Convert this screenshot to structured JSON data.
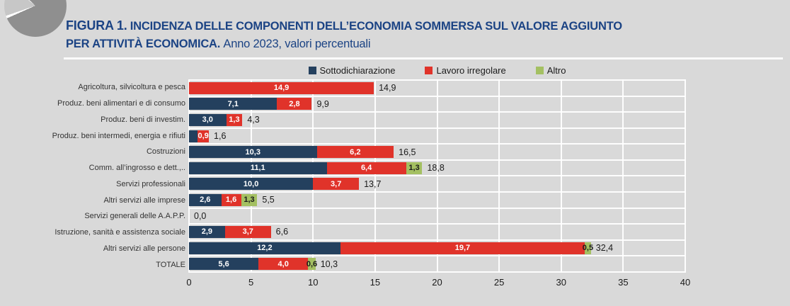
{
  "page": {
    "background": "#d9d9d9"
  },
  "figure": {
    "label": "FIGURA 1.",
    "title_line1": "INCIDENZA DELLE COMPONENTI DELL’ECONOMIA SOMMERSA SUL VALORE AGGIUNTO",
    "title_line2": "PER ATTIVITÀ ECONOMICA.",
    "subtitle": "Anno 2023, valori percentuali",
    "title_color": "#1b4384"
  },
  "legend": [
    {
      "label": "Sottodichiarazione",
      "color": "#24405e"
    },
    {
      "label": "Lavoro irregolare",
      "color": "#e0332a"
    },
    {
      "label": "Altro",
      "color": "#a4c062"
    }
  ],
  "chart_data": {
    "type": "bar",
    "orientation": "horizontal",
    "stacked": true,
    "title": "Incidenza delle componenti dell’economia sommersa sul valore aggiunto per attività economica",
    "xlabel": "",
    "ylabel": "",
    "xlim": [
      0,
      40
    ],
    "x_ticks": [
      0,
      5,
      10,
      15,
      20,
      25,
      30,
      35,
      40
    ],
    "grid": true,
    "legend_position": "top",
    "categories": [
      "Agricoltura, silvicoltura e pesca",
      "Produz. beni alimentari e di consumo",
      "Produz. beni di investim.",
      "Produz. beni intermedi, energia e rifiuti",
      "Costruzioni",
      "Comm. all’ingrosso e dett.,..",
      "Servizi professionali",
      "Altri servizi alle imprese",
      "Servizi generali delle A.A.P.P.",
      "Istruzione, sanità e assistenza sociale",
      "Altri servizi alle persone",
      "TOTALE"
    ],
    "series": [
      {
        "name": "Sottodichiarazione",
        "color": "#24405e",
        "label_color": "#ffffff",
        "values": [
          0,
          7.1,
          3.0,
          0.7,
          10.3,
          11.1,
          10.0,
          2.6,
          0,
          2.9,
          12.2,
          5.6
        ],
        "labels": [
          "",
          "7,1",
          "3,0",
          "",
          "10,3",
          "11,1",
          "10,0",
          "2,6",
          "",
          "2,9",
          "12,2",
          "5,6"
        ]
      },
      {
        "name": "Lavoro irregolare",
        "color": "#e0332a",
        "label_color": "#ffffff",
        "values": [
          14.9,
          2.8,
          1.3,
          0.9,
          6.2,
          6.4,
          3.7,
          1.6,
          0,
          3.7,
          19.7,
          4.0
        ],
        "labels": [
          "14,9",
          "2,8",
          "1,3",
          "0,9",
          "6,2",
          "6,4",
          "3,7",
          "1,6",
          "",
          "3,7",
          "19,7",
          "4,0"
        ]
      },
      {
        "name": "Altro",
        "color": "#a4c062",
        "label_color": "#1a1a1a",
        "values": [
          0,
          0,
          0,
          0,
          0,
          1.3,
          0,
          1.3,
          0,
          0,
          0.5,
          0.6
        ],
        "labels": [
          "",
          "",
          "",
          "",
          "",
          "1,3",
          "",
          "1,3",
          "",
          "",
          "0,5",
          "0,6"
        ]
      }
    ],
    "totals": [
      "14,9",
      "9,9",
      "4,3",
      "1,6",
      "16,5",
      "18,8",
      "13,7",
      "5,5",
      "0,0",
      "6,6",
      "32,4",
      "10,3"
    ]
  }
}
